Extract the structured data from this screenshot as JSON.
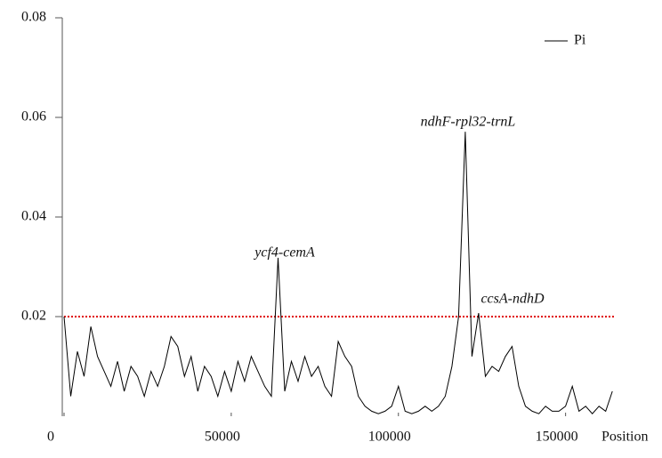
{
  "chart_data": {
    "type": "line",
    "x_label": "Position",
    "xlim": [
      0,
      165000
    ],
    "xticks": [
      0,
      50000,
      100000,
      150000
    ],
    "ylim": [
      0,
      0.08
    ],
    "yticks": [
      0.02,
      0.04,
      0.06,
      0.08
    ],
    "legend": "upper right",
    "x": [
      0,
      2000,
      4000,
      6000,
      8000,
      10000,
      12000,
      14000,
      16000,
      18000,
      20000,
      22000,
      24000,
      26000,
      28000,
      30000,
      32000,
      34000,
      36000,
      38000,
      40000,
      42000,
      44000,
      46000,
      48000,
      50000,
      52000,
      54000,
      56000,
      58000,
      60000,
      62000,
      64000,
      66000,
      68000,
      70000,
      72000,
      74000,
      76000,
      78000,
      80000,
      82000,
      84000,
      86000,
      88000,
      90000,
      92000,
      94000,
      96000,
      98000,
      100000,
      102000,
      104000,
      106000,
      108000,
      110000,
      112000,
      114000,
      116000,
      118000,
      120000,
      122000,
      124000,
      126000,
      128000,
      130000,
      132000,
      134000,
      136000,
      138000,
      140000,
      142000,
      144000,
      146000,
      148000,
      150000,
      152000,
      154000,
      156000,
      158000,
      160000,
      162000,
      164000
    ],
    "series": [
      {
        "name": "Pi",
        "color": "#000000",
        "values": [
          0.02,
          0.004,
          0.013,
          0.008,
          0.018,
          0.012,
          0.009,
          0.006,
          0.011,
          0.005,
          0.01,
          0.008,
          0.004,
          0.009,
          0.006,
          0.01,
          0.016,
          0.014,
          0.008,
          0.012,
          0.005,
          0.01,
          0.008,
          0.004,
          0.009,
          0.005,
          0.011,
          0.007,
          0.012,
          0.009,
          0.006,
          0.004,
          0.0318,
          0.005,
          0.011,
          0.007,
          0.012,
          0.008,
          0.01,
          0.006,
          0.004,
          0.015,
          0.012,
          0.01,
          0.004,
          0.002,
          0.001,
          0.0005,
          0.001,
          0.002,
          0.006,
          0.001,
          0.0005,
          0.001,
          0.002,
          0.001,
          0.002,
          0.004,
          0.01,
          0.02,
          0.0571,
          0.012,
          0.0207,
          0.008,
          0.01,
          0.009,
          0.012,
          0.014,
          0.006,
          0.002,
          0.001,
          0.0005,
          0.002,
          0.001,
          0.001,
          0.002,
          0.006,
          0.001,
          0.002,
          0.0005,
          0.002,
          0.001,
          0.005
        ]
      }
    ],
    "threshold": {
      "value": 0.02,
      "color": "#e00000"
    },
    "annotations": [
      "ycf4-cemA",
      "ndhF-rpl32-trnL",
      "ccsA-ndhD"
    ]
  }
}
